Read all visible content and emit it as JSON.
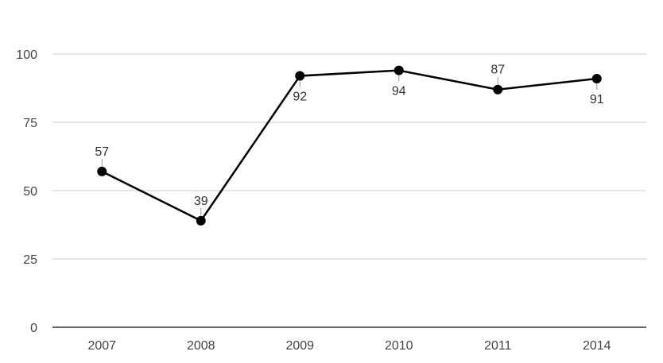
{
  "chart_data": {
    "type": "line",
    "title": "",
    "xlabel": "",
    "ylabel": "",
    "categories": [
      "2007",
      "2008",
      "2009",
      "2010",
      "2011",
      "2014"
    ],
    "series": [
      {
        "values": [
          57,
          39,
          92,
          94,
          87,
          91
        ]
      }
    ],
    "data_label_positions": [
      "above",
      "above",
      "below",
      "below",
      "above",
      "below"
    ],
    "ylim": [
      0,
      100
    ],
    "yticks": [
      0,
      25,
      50,
      75,
      100
    ],
    "grid": true,
    "legend": "none",
    "line_color": "#000000",
    "grid_color": "#cccccc"
  }
}
